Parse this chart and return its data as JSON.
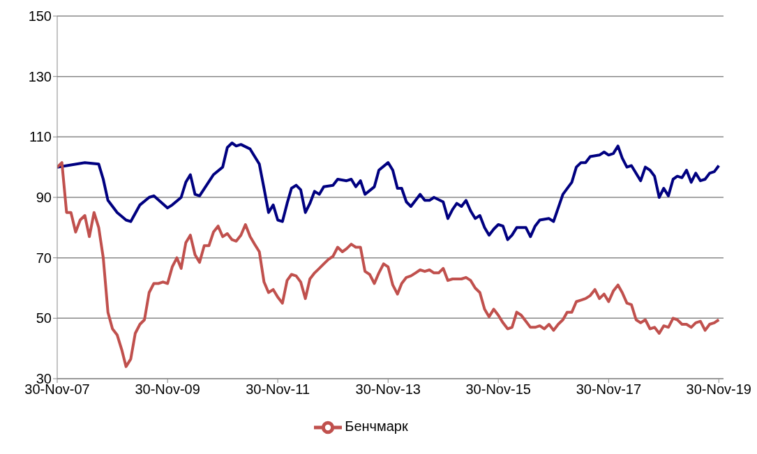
{
  "chart_data": {
    "type": "line",
    "xlim": [
      "2007-11-30",
      "2019-12-31"
    ],
    "ylim": [
      30,
      150
    ],
    "yticks": [
      30,
      50,
      70,
      90,
      110,
      130,
      150
    ],
    "xticks": [
      {
        "value": "2007-11-30",
        "label": "30-Nov-07"
      },
      {
        "value": "2009-11-30",
        "label": "30-Nov-09"
      },
      {
        "value": "2011-11-30",
        "label": "30-Nov-11"
      },
      {
        "value": "2013-11-30",
        "label": "30-Nov-13"
      },
      {
        "value": "2015-11-30",
        "label": "30-Nov-15"
      },
      {
        "value": "2017-11-30",
        "label": "30-Nov-17"
      },
      {
        "value": "2019-11-30",
        "label": "30-Nov-19"
      }
    ],
    "grid": "y",
    "legend": "bottom",
    "marker": "none",
    "line_style": "solid",
    "series": [
      {
        "color": "#000080",
        "x": [
          "2007-11-30",
          "2008-05-31",
          "2008-08-31",
          "2008-09-30",
          "2008-10-31",
          "2008-12-31",
          "2009-02-28",
          "2009-03-31",
          "2009-05-31",
          "2009-07-31",
          "2009-08-31",
          "2009-11-30",
          "2009-12-31",
          "2010-02-28",
          "2010-03-31",
          "2010-04-30",
          "2010-05-31",
          "2010-06-30",
          "2010-09-30",
          "2010-11-30",
          "2010-12-31",
          "2011-01-31",
          "2011-02-28",
          "2011-03-31",
          "2011-05-31",
          "2011-07-31",
          "2011-08-31",
          "2011-09-30",
          "2011-10-31",
          "2011-11-30",
          "2011-12-31",
          "2012-01-31",
          "2012-02-29",
          "2012-03-31",
          "2012-04-30",
          "2012-05-31",
          "2012-06-30",
          "2012-07-31",
          "2012-08-31",
          "2012-09-30",
          "2012-11-30",
          "2012-12-31",
          "2013-02-28",
          "2013-03-31",
          "2013-04-30",
          "2013-05-31",
          "2013-06-30",
          "2013-08-31",
          "2013-09-30",
          "2013-11-30",
          "2013-12-31",
          "2014-01-31",
          "2014-02-28",
          "2014-03-31",
          "2014-04-30",
          "2014-06-30",
          "2014-07-31",
          "2014-08-31",
          "2014-09-30",
          "2014-11-30",
          "2014-12-31",
          "2015-01-31",
          "2015-02-28",
          "2015-03-31",
          "2015-04-30",
          "2015-05-31",
          "2015-06-30",
          "2015-07-31",
          "2015-08-31",
          "2015-09-30",
          "2015-10-31",
          "2015-11-30",
          "2015-12-31",
          "2016-01-31",
          "2016-02-29",
          "2016-03-31",
          "2016-05-31",
          "2016-06-30",
          "2016-07-31",
          "2016-08-31",
          "2016-10-31",
          "2016-11-30",
          "2017-01-31",
          "2017-03-31",
          "2017-04-30",
          "2017-05-31",
          "2017-06-30",
          "2017-07-31",
          "2017-09-30",
          "2017-10-31",
          "2017-11-30",
          "2017-12-31",
          "2018-01-31",
          "2018-02-28",
          "2018-03-31",
          "2018-04-30",
          "2018-06-30",
          "2018-07-31",
          "2018-08-31",
          "2018-09-30",
          "2018-10-31",
          "2018-11-30",
          "2018-12-31",
          "2019-01-31",
          "2019-02-28",
          "2019-03-31",
          "2019-04-30",
          "2019-05-31",
          "2019-06-30",
          "2019-07-31",
          "2019-08-31",
          "2019-09-30",
          "2019-10-31",
          "2019-11-30"
        ],
        "values": [
          100,
          101.5,
          101,
          96,
          89,
          85,
          82.5,
          82,
          87.5,
          90,
          90.5,
          86.5,
          87.5,
          90,
          95,
          97.5,
          91,
          90.5,
          97.5,
          100,
          106.5,
          108,
          107,
          107.5,
          106,
          101,
          93,
          85,
          87.5,
          82.5,
          82,
          88,
          93,
          94,
          92.5,
          85,
          88,
          92,
          91,
          93.5,
          94,
          96,
          95.5,
          96,
          93.5,
          95.5,
          91,
          93.5,
          99,
          101.5,
          99,
          93,
          93,
          88.5,
          87,
          91,
          89,
          89,
          90,
          88.5,
          83,
          86,
          88,
          87,
          89,
          85.5,
          83,
          84,
          80,
          77.5,
          79.5,
          81,
          80.5,
          76,
          77.5,
          80,
          80,
          77,
          80.5,
          82.5,
          83,
          82,
          91,
          95,
          100,
          101.5,
          101.5,
          103.5,
          104,
          105,
          104,
          104.5,
          107,
          103,
          100,
          100.5,
          95.5,
          100,
          99,
          97,
          90,
          93,
          90.5,
          96,
          97,
          96.5,
          99,
          95,
          98,
          95.5,
          96,
          98,
          98.5,
          100.5
        ]
      },
      {
        "name": "Бенчмарк",
        "color": "#c0504d",
        "x": [
          "2007-11-30",
          "2007-12-31",
          "2008-01-31",
          "2008-02-29",
          "2008-03-31",
          "2008-04-30",
          "2008-05-31",
          "2008-06-30",
          "2008-07-31",
          "2008-08-31",
          "2008-09-30",
          "2008-10-31",
          "2008-11-30",
          "2008-12-31",
          "2009-01-31",
          "2009-02-28",
          "2009-03-31",
          "2009-04-30",
          "2009-05-31",
          "2009-06-30",
          "2009-07-31",
          "2009-08-31",
          "2009-09-30",
          "2009-10-31",
          "2009-11-30",
          "2009-12-31",
          "2010-01-31",
          "2010-02-28",
          "2010-03-31",
          "2010-04-30",
          "2010-05-31",
          "2010-06-30",
          "2010-07-31",
          "2010-08-31",
          "2010-09-30",
          "2010-10-31",
          "2010-11-30",
          "2010-12-31",
          "2011-01-31",
          "2011-02-28",
          "2011-03-31",
          "2011-04-30",
          "2011-05-31",
          "2011-06-30",
          "2011-07-31",
          "2011-08-31",
          "2011-09-30",
          "2011-10-31",
          "2011-11-30",
          "2011-12-31",
          "2012-01-31",
          "2012-02-29",
          "2012-03-31",
          "2012-04-30",
          "2012-05-31",
          "2012-06-30",
          "2012-07-31",
          "2012-08-31",
          "2012-09-30",
          "2012-10-31",
          "2012-11-30",
          "2012-12-31",
          "2013-01-31",
          "2013-02-28",
          "2013-03-31",
          "2013-04-30",
          "2013-05-31",
          "2013-06-30",
          "2013-07-31",
          "2013-08-31",
          "2013-09-30",
          "2013-10-31",
          "2013-11-30",
          "2013-12-31",
          "2014-01-31",
          "2014-02-28",
          "2014-03-31",
          "2014-04-30",
          "2014-05-31",
          "2014-06-30",
          "2014-07-31",
          "2014-08-31",
          "2014-09-30",
          "2014-10-31",
          "2014-11-30",
          "2014-12-31",
          "2015-01-31",
          "2015-02-28",
          "2015-03-31",
          "2015-04-30",
          "2015-05-31",
          "2015-06-30",
          "2015-07-31",
          "2015-08-31",
          "2015-09-30",
          "2015-10-31",
          "2015-11-30",
          "2015-12-31",
          "2016-01-31",
          "2016-02-29",
          "2016-03-31",
          "2016-04-30",
          "2016-05-31",
          "2016-06-30",
          "2016-07-31",
          "2016-08-31",
          "2016-09-30",
          "2016-10-31",
          "2016-11-30",
          "2016-12-31",
          "2017-01-31",
          "2017-02-28",
          "2017-03-31",
          "2017-04-30",
          "2017-05-31",
          "2017-06-30",
          "2017-07-31",
          "2017-08-31",
          "2017-09-30",
          "2017-10-31",
          "2017-11-30",
          "2017-12-31",
          "2018-01-31",
          "2018-02-28",
          "2018-03-31",
          "2018-04-30",
          "2018-05-31",
          "2018-06-30",
          "2018-07-31",
          "2018-08-31",
          "2018-09-30",
          "2018-10-31",
          "2018-11-30",
          "2018-12-31",
          "2019-01-31",
          "2019-02-28",
          "2019-03-31",
          "2019-04-30",
          "2019-05-31",
          "2019-06-30",
          "2019-07-31",
          "2019-08-31",
          "2019-09-30",
          "2019-10-31",
          "2019-11-30"
        ],
        "values": [
          100,
          101.5,
          85,
          85,
          78.5,
          82.5,
          84,
          77,
          85,
          80,
          70,
          52,
          46.5,
          44.5,
          39.5,
          34,
          36.5,
          45,
          48,
          49.5,
          58.5,
          61.5,
          61.5,
          62,
          61.5,
          67,
          70,
          66.5,
          75,
          77.5,
          71,
          68.5,
          74,
          74,
          78.5,
          80.5,
          77,
          78,
          76,
          75.5,
          77.5,
          81,
          77,
          74.5,
          72,
          62,
          58.5,
          59.5,
          57,
          55,
          62.5,
          64.5,
          64,
          62,
          56.5,
          63,
          65,
          66.5,
          68,
          69.5,
          70.5,
          73.5,
          72,
          73,
          74.5,
          73.5,
          73.5,
          65.5,
          64.5,
          61.5,
          65,
          68,
          67,
          61,
          58,
          61.5,
          63.5,
          64,
          65,
          66,
          65.5,
          66,
          65,
          65,
          66.5,
          62.5,
          63,
          63,
          63,
          63.5,
          62.5,
          60,
          58.5,
          53,
          50.5,
          53,
          51,
          48.5,
          46.5,
          47,
          52,
          51,
          49,
          47,
          47,
          47.5,
          46.5,
          48,
          46,
          48,
          49.5,
          52,
          52,
          55.5,
          56,
          56.5,
          57.5,
          59.5,
          56.5,
          58,
          55.5,
          59,
          61,
          58.5,
          55,
          54.5,
          49.5,
          48.5,
          49.5,
          46.5,
          47,
          45,
          47.5,
          47,
          50,
          49.5,
          48,
          48,
          47,
          48.5,
          49,
          46,
          48,
          48.5,
          49.5
        ]
      }
    ]
  }
}
